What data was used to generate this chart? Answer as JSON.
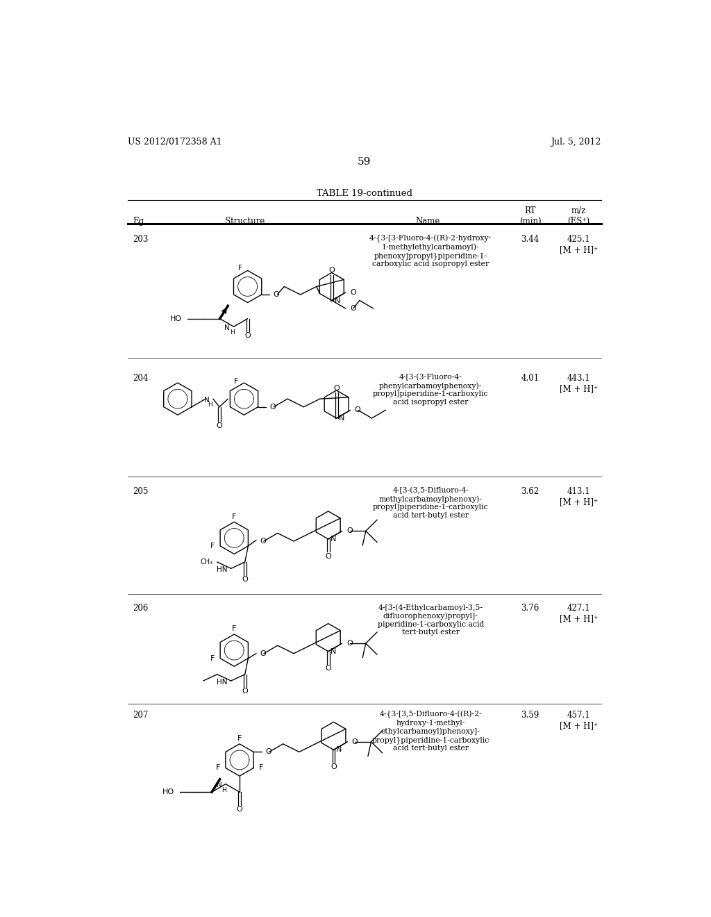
{
  "page_header_left": "US 2012/0172358 A1",
  "page_header_right": "Jul. 5, 2012",
  "page_number": "59",
  "table_title": "TABLE 19-continued",
  "rows": [
    {
      "eg": "203",
      "name": "4-{3-[3-Fluoro-4-((R)-2-hydroxy-\n1-methylethylcarbamoyl)-\nphenoxy]propyl}piperidine-1-\ncarboxylic acid isopropyl ester",
      "rt": "3.44",
      "mz": "425.1\n[M + H]⁺"
    },
    {
      "eg": "204",
      "name": "4-[3-(3-Fluoro-4-\nphenylcarbamoylphenoxy)-\npropyl]piperidine-1-carboxylic\nacid isopropyl ester",
      "rt": "4.01",
      "mz": "443.1\n[M + H]⁺"
    },
    {
      "eg": "205",
      "name": "4-[3-(3,5-Difluoro-4-\nmethylcarbamoylphenoxy)-\npropyl]piperidine-1-carboxylic\nacid tert-butyl ester",
      "rt": "3.62",
      "mz": "413.1\n[M + H]⁺"
    },
    {
      "eg": "206",
      "name": "4-[3-(4-Ethylcarbamoyl-3,5-\ndifluorophenoxy)propyl]-\npiperidine-1-carboxylic acid\ntert-butyl ester",
      "rt": "3.76",
      "mz": "427.1\n[M + H]⁺"
    },
    {
      "eg": "207",
      "name": "4-{3-[3,5-Difluoro-4-((R)-2-\nhydroxy-1-methyl-\nethylcarbamoyl)phenoxy]-\npropyl}piperidine-1-carboxylic\nacid tert-butyl ester",
      "rt": "3.59",
      "mz": "457.1\n[M + H]⁺"
    }
  ],
  "bg_color": "#ffffff",
  "text_color": "#000000"
}
